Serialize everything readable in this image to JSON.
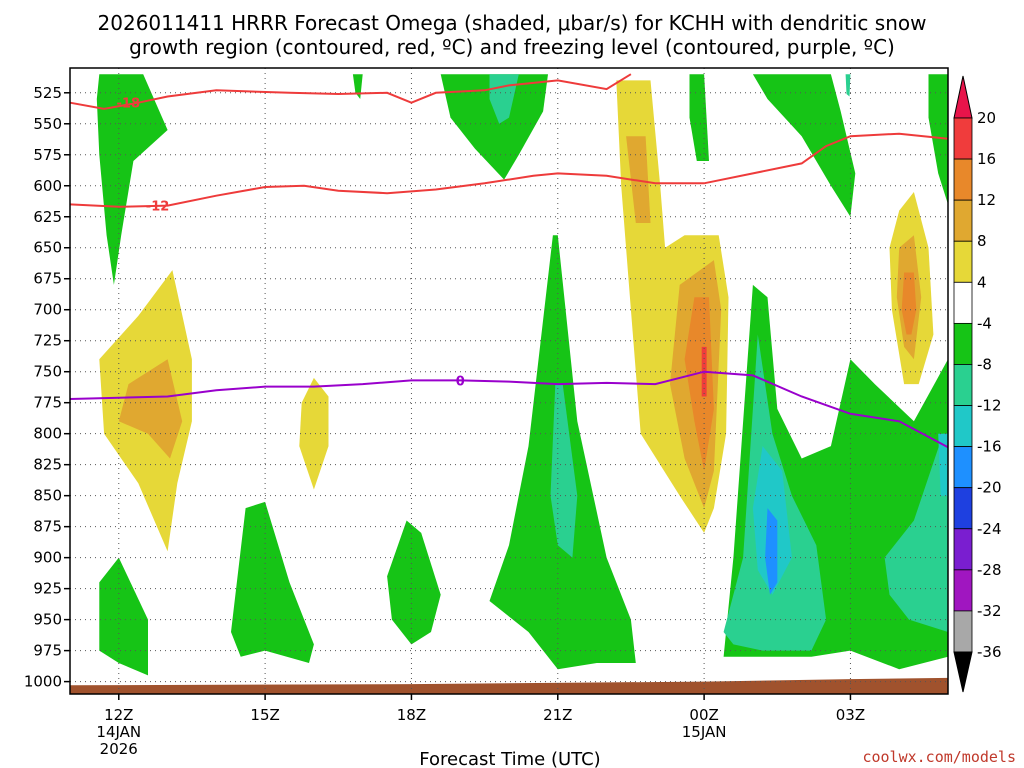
{
  "chart_data": {
    "type": "contour",
    "title_line1": "2026011411 HRRR Forecast Omega (shaded, μbar/s) for KCHH with dendritic snow",
    "title_line2": "growth region (contoured, red, ºC) and freezing level (contoured, purple, ºC)",
    "xlabel": "Forecast Time (UTC)",
    "credit": "coolwx.com/models",
    "x_ticks": [
      {
        "hour": 12,
        "l1": "12Z",
        "l2": "14JAN",
        "l3": "2026"
      },
      {
        "hour": 15,
        "l1": "15Z"
      },
      {
        "hour": 18,
        "l1": "18Z"
      },
      {
        "hour": 21,
        "l1": "21Z"
      },
      {
        "hour": 24,
        "l1": "00Z",
        "l2": "15JAN"
      },
      {
        "hour": 27,
        "l1": "03Z"
      }
    ],
    "x_range_hours": [
      11,
      29
    ],
    "y_ticks": [
      525,
      550,
      575,
      600,
      625,
      650,
      675,
      700,
      725,
      750,
      775,
      800,
      825,
      850,
      875,
      900,
      925,
      950,
      975,
      1000
    ],
    "y_range_hPa": [
      505,
      1010
    ],
    "omega_colorbar": {
      "levels": [
        20,
        16,
        12,
        8,
        4,
        -4,
        -8,
        -12,
        -16,
        -20,
        -24,
        -28,
        -32,
        -36
      ],
      "colors": [
        "#e8144a",
        "#f03c3c",
        "#e8882a",
        "#e0a830",
        "#e6d838",
        "#ffffff",
        "#16c416",
        "#2ad090",
        "#20c8c8",
        "#1e90ff",
        "#1e40e0",
        "#7a1ed0",
        "#a016c0",
        "#a8a8a8",
        "#000000"
      ]
    },
    "dgz_contours": [
      {
        "label": "-18",
        "color": "#ee3b3b",
        "points": [
          [
            11,
            533
          ],
          [
            11.7,
            538
          ],
          [
            12.4,
            533
          ],
          [
            13,
            528
          ],
          [
            14,
            523
          ],
          [
            15.5,
            525
          ],
          [
            16.5,
            526
          ],
          [
            17.5,
            525
          ],
          [
            18,
            533
          ],
          [
            18.5,
            525
          ],
          [
            19.5,
            523
          ],
          [
            20,
            519
          ],
          [
            21,
            515
          ],
          [
            22,
            522
          ],
          [
            22.5,
            510
          ]
        ]
      },
      {
        "label": "-12",
        "color": "#ee3b3b",
        "points": [
          [
            11,
            615
          ],
          [
            12,
            617
          ],
          [
            13,
            616
          ],
          [
            14,
            608
          ],
          [
            15,
            601
          ],
          [
            15.8,
            600
          ],
          [
            16.5,
            604
          ],
          [
            17.5,
            606
          ],
          [
            18.5,
            603
          ],
          [
            19.5,
            598
          ],
          [
            20.5,
            592
          ],
          [
            21,
            590
          ],
          [
            22,
            592
          ],
          [
            23,
            598
          ],
          [
            24,
            598
          ],
          [
            25,
            590
          ],
          [
            26,
            582
          ],
          [
            26.5,
            568
          ],
          [
            27,
            560
          ],
          [
            28,
            558
          ],
          [
            28.5,
            560
          ],
          [
            29,
            562
          ]
        ]
      }
    ],
    "freezing_level": {
      "label": "0",
      "color": "#9900cc",
      "points": [
        [
          11,
          772
        ],
        [
          12,
          771
        ],
        [
          13,
          770
        ],
        [
          14,
          765
        ],
        [
          15,
          762
        ],
        [
          16,
          762
        ],
        [
          17,
          760
        ],
        [
          18,
          757
        ],
        [
          19,
          757
        ],
        [
          20,
          758
        ],
        [
          21,
          760
        ],
        [
          22,
          759
        ],
        [
          23,
          760
        ],
        [
          24,
          750
        ],
        [
          25,
          753
        ],
        [
          26,
          770
        ],
        [
          27,
          784
        ],
        [
          28,
          790
        ],
        [
          29,
          811
        ]
      ]
    }
  }
}
